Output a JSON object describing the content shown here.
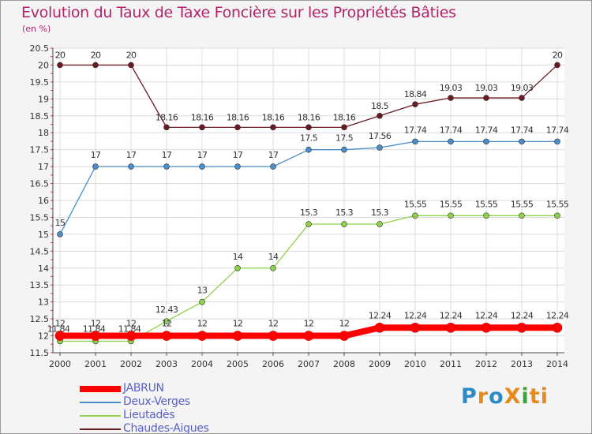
{
  "chart_data": {
    "type": "line",
    "title": "Evolution du Taux de Taxe Foncière sur les Propriétés Bâties",
    "unit_label": "(en %)",
    "x": [
      2000,
      2001,
      2002,
      2003,
      2004,
      2005,
      2006,
      2007,
      2008,
      2009,
      2010,
      2011,
      2012,
      2013,
      2014
    ],
    "ylim": [
      11.5,
      20.5
    ],
    "yticks": [
      11.5,
      12,
      12.5,
      13,
      13.5,
      14,
      14.5,
      15,
      15.5,
      16,
      16.5,
      17,
      17.5,
      18,
      18.5,
      19,
      19.5,
      20,
      20.5
    ],
    "ytick_labels": [
      "11.5",
      "12",
      "12.5",
      "13",
      "13.5",
      "14",
      "14.5",
      "15",
      "15.5",
      "16",
      "16.5",
      "17",
      "17.5",
      "18",
      "18.5",
      "19",
      "19.5",
      "20",
      "20.5"
    ],
    "grid": true,
    "series": [
      {
        "name": "Chaudes-Aigues",
        "color": "#6b1a22",
        "values": [
          20,
          20,
          20,
          18.16,
          18.16,
          18.16,
          18.16,
          18.16,
          18.16,
          18.5,
          18.84,
          19.03,
          19.03,
          19.03,
          20
        ],
        "labels": [
          "20",
          "20",
          "20",
          "18.16",
          "18.16",
          "18.16",
          "18.16",
          "18.16",
          "18.16",
          "18.5",
          "18.84",
          "19.03",
          "19.03",
          "19.03",
          "20"
        ]
      },
      {
        "name": "Deux-Verges",
        "color": "#4a8ecc",
        "values": [
          15,
          17,
          17,
          17,
          17,
          17,
          17,
          17.5,
          17.5,
          17.56,
          17.74,
          17.74,
          17.74,
          17.74,
          17.74
        ],
        "labels": [
          "15",
          "17",
          "17",
          "17",
          "17",
          "17",
          "17",
          "17.5",
          "17.5",
          "17.56",
          "17.74",
          "17.74",
          "17.74",
          "17.74",
          "17.74"
        ]
      },
      {
        "name": "Lieutadès",
        "color": "#8fd24a",
        "values": [
          11.84,
          11.84,
          11.84,
          12.43,
          13,
          14,
          14,
          15.3,
          15.3,
          15.3,
          15.55,
          15.55,
          15.55,
          15.55,
          15.55
        ],
        "labels": [
          "11.84",
          "11.84",
          "11.84",
          "12.43",
          "13",
          "14",
          "14",
          "15.3",
          "15.3",
          "15.3",
          "15.55",
          "15.55",
          "15.55",
          "15.55",
          "15.55"
        ]
      },
      {
        "name": "JABRUN",
        "color": "#ff0000",
        "values": [
          12,
          12,
          12,
          12,
          12,
          12,
          12,
          12,
          12,
          12.24,
          12.24,
          12.24,
          12.24,
          12.24,
          12.24
        ],
        "labels": [
          "12",
          "12",
          "12",
          "12",
          "12",
          "12",
          "12",
          "12",
          "12",
          "12.24",
          "12.24",
          "12.24",
          "12.24",
          "12.24",
          "12.24"
        ]
      }
    ],
    "legend": {
      "placement": "bottom-left",
      "order": [
        "JABRUN",
        "Deux-Verges",
        "Lieutadès",
        "Chaudes-Aigues"
      ]
    }
  },
  "logo": {
    "text": "ProXiti"
  }
}
